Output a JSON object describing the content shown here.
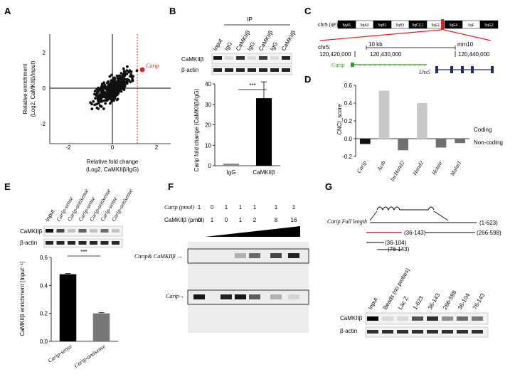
{
  "panels": {
    "A": {
      "label": "A",
      "xlabel_line1": "Relative fold change",
      "xlabel_line2": "(Log2, CaMKIIβ/IgG)",
      "ylabel_line1": "Relative enrichment",
      "ylabel_line2": "(Log2, CaMKIIβ/Input)",
      "x_ticks": [
        "-2",
        "0",
        "2"
      ],
      "y_ticks": [
        "2",
        "0",
        "-2"
      ],
      "highlight_label": "Carip",
      "highlight_color": "#d62728"
    },
    "B": {
      "label": "B",
      "ip_header": "IP",
      "lane_labels": [
        "Input",
        "IgG",
        "CaMKIIβ",
        "IgG",
        "CaMKIIβ",
        "IgG",
        "CaMKIIβ"
      ],
      "blot_rows": [
        "CaMKIIβ",
        "β-actin"
      ],
      "ylabel": "Carip fold change (CaMKIIβ/IgG)",
      "significance": "***"
    },
    "C": {
      "label": "C",
      "chrom": "chr5 (qF)",
      "bands": [
        "5qA1",
        "5qA3",
        "5qB1",
        "5qB3",
        "5qC3.1",
        "5qE1",
        "5qE4",
        "5qF",
        "5qG2"
      ],
      "coord_label": "chr5:",
      "scale_label": "10 kb",
      "genome": "mm10",
      "coords": [
        "120,420,000",
        "120,430,000",
        "120,440,000"
      ],
      "gene1": "Carip",
      "gene2": "Lhx5",
      "gene1_color": "#3a9a2e",
      "gene2_color": "#1f2a6b"
    },
    "D": {
      "label": "D",
      "ylabel": "CNCI_score",
      "y_ticks": [
        "0.6",
        "0.4",
        "0.2",
        "0.0",
        "-0.2"
      ],
      "legend_coding": "Coding",
      "legend_noncoding": "Non-coding"
    },
    "E": {
      "label": "E",
      "lane_labels": [
        "Input",
        "Carip-sense",
        "Carip-antisense",
        "Carip-sense",
        "Carip-antisense",
        "Carip-sense",
        "Carip-antisense"
      ],
      "blot_rows": [
        "CaMKIIβ",
        "β-actin"
      ],
      "ylabel": "CaMKIIβ enrichment (Input⁻¹)",
      "y_ticks": [
        "0.6",
        "0.4",
        "0.2",
        "0.0"
      ],
      "significance": "***"
    },
    "F": {
      "label": "F",
      "row1_label": "Carip (pmol)",
      "row1_values": [
        "1",
        "0",
        "1",
        "1",
        "1",
        "1",
        "1"
      ],
      "row2_label": "CaMKIIβ (pmol)",
      "row2_values": [
        "0",
        "1",
        "0",
        "1",
        "2",
        "8",
        "16"
      ],
      "band_upper": "Carip& CaMKIIβ",
      "band_lower": "Carip"
    },
    "G": {
      "label": "G",
      "full_length_label": "Carip Full length",
      "fragments": [
        "(1-623)",
        "(36-143)",
        "(266-598)",
        "(36-104)",
        "(76-143)"
      ],
      "lane_labels": [
        "Input",
        "Beads (no probes)",
        "Lac Z",
        "1-623",
        "36-143",
        "266-598",
        "36-104",
        "76-143"
      ],
      "blot_rows": [
        "CaMKIIβ",
        "β-actin"
      ],
      "highlight_color": "#d62728"
    }
  },
  "chart_data": [
    {
      "type": "bar",
      "panel": "B",
      "categories": [
        "IgG",
        "CaMKIIβ"
      ],
      "values": [
        1,
        33
      ],
      "errors": [
        0,
        8
      ],
      "ylabel": "Carip fold change (CaMKIIβ/IgG)",
      "ylim": [
        0,
        40
      ],
      "y_ticks": [
        0,
        10,
        20,
        30,
        40
      ],
      "colors": [
        "#888888",
        "#000000"
      ]
    },
    {
      "type": "bar",
      "panel": "D",
      "categories": [
        "Carip",
        "Actb",
        "lncHand2",
        "Hand2",
        "Hotair",
        "Malat1"
      ],
      "values": [
        -0.06,
        0.54,
        -0.13,
        0.4,
        -0.1,
        -0.05
      ],
      "classes": [
        "Non-coding",
        "Coding",
        "Non-coding",
        "Coding",
        "Non-coding",
        "Non-coding"
      ],
      "ylabel": "CNCI_score",
      "ylim": [
        -0.2,
        0.6
      ],
      "colors": {
        "Coding": "#c8c8c8",
        "Non-coding": "#707070",
        "Carip": "#111111"
      }
    },
    {
      "type": "bar",
      "panel": "E",
      "categories": [
        "Carip-sense",
        "Carip-antisense"
      ],
      "values": [
        0.48,
        0.2
      ],
      "errors": [
        0.005,
        0.005
      ],
      "ylabel": "CaMKIIβ enrichment (Input⁻¹)",
      "ylim": [
        0,
        0.6
      ],
      "colors": [
        "#000000",
        "#777777"
      ]
    }
  ]
}
